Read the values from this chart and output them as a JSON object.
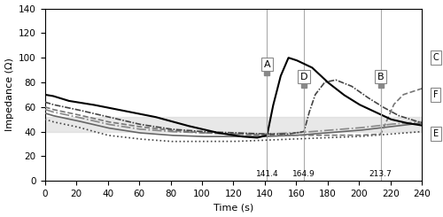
{
  "title": "",
  "xlabel": "Time (s)",
  "ylabel": "Impedance (Ω)",
  "xlim": [
    0,
    240
  ],
  "ylim": [
    0,
    140
  ],
  "xticks": [
    0,
    20,
    40,
    60,
    80,
    100,
    120,
    140,
    160,
    180,
    200,
    220,
    240
  ],
  "yticks": [
    0,
    20,
    40,
    60,
    80,
    100,
    120,
    140
  ],
  "gray_band_ymin": 40,
  "gray_band_ymax": 52,
  "rolloff_A": 141.4,
  "rolloff_D": 164.9,
  "rolloff_B": 213.7,
  "bg_color": "#ffffff",
  "band_color": "#d3d3d3"
}
